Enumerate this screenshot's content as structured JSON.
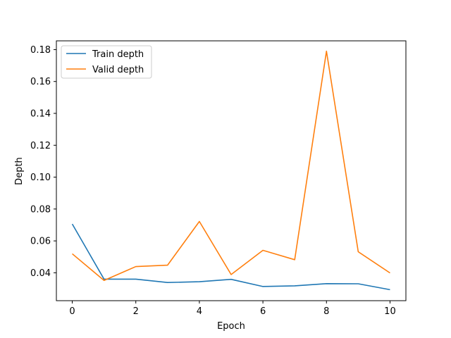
{
  "chart_data": {
    "type": "line",
    "title": "",
    "xlabel": "Epoch",
    "ylabel": "Depth",
    "xlim": [
      -0.5,
      10.5
    ],
    "ylim": [
      0.0225,
      0.1855
    ],
    "x_ticks": [
      0,
      2,
      4,
      6,
      8,
      10
    ],
    "y_ticks": [
      0.04,
      0.06,
      0.08,
      0.1,
      0.12,
      0.14,
      0.16,
      0.18
    ],
    "y_tick_labels": [
      "0.04",
      "0.06",
      "0.08",
      "0.10",
      "0.12",
      "0.14",
      "0.16",
      "0.18"
    ],
    "x": [
      0,
      1,
      2,
      3,
      4,
      5,
      6,
      7,
      8,
      9,
      10
    ],
    "series": [
      {
        "name": "Train depth",
        "color": "#1f77b4",
        "values": [
          0.0706,
          0.036,
          0.036,
          0.0339,
          0.0344,
          0.0359,
          0.0314,
          0.0318,
          0.0332,
          0.0331,
          0.0294
        ]
      },
      {
        "name": "Valid depth",
        "color": "#ff7f0e",
        "values": [
          0.0519,
          0.0352,
          0.0439,
          0.0448,
          0.0722,
          0.0389,
          0.0541,
          0.0482,
          0.179,
          0.0532,
          0.0399
        ]
      }
    ],
    "grid": false,
    "legend_position": "top-left"
  }
}
